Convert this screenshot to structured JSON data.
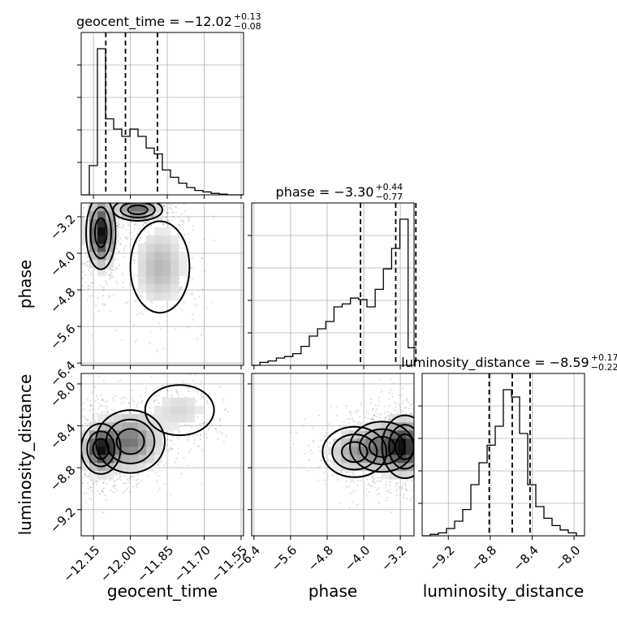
{
  "chart_data": {
    "type": "corner",
    "parameters": [
      "geocent_time",
      "phase",
      "luminosity_distance"
    ],
    "axis_labels": {
      "x": [
        "geocent_time",
        "phase",
        "luminosity_distance"
      ],
      "y": [
        "phase",
        "luminosity_distance"
      ]
    },
    "ranges": {
      "geocent_time": [
        -12.2,
        -11.54
      ],
      "phase": [
        -6.45,
        -2.9
      ],
      "luminosity_distance": [
        -9.45,
        -7.9
      ]
    },
    "ticks": {
      "geocent_time": [
        "−12.15",
        "−12.00",
        "−11.85",
        "−11.70",
        "−11.55"
      ],
      "phase": [
        "−6.4",
        "−5.6",
        "−4.8",
        "−4.0",
        "−3.2"
      ],
      "luminosity_distance": [
        "−9.2",
        "−8.8",
        "−8.4",
        "−8.0"
      ]
    },
    "tick_values": {
      "geocent_time": [
        -12.15,
        -12.0,
        -11.85,
        -11.7,
        -11.55
      ],
      "phase": [
        -6.4,
        -5.6,
        -4.8,
        -4.0,
        -3.2
      ],
      "luminosity_distance": [
        -9.2,
        -8.8,
        -8.4,
        -8.0
      ]
    },
    "titles": [
      {
        "param": "geocent_time",
        "text": "geocent_time = −12.02",
        "sup": "+0.13",
        "sub": "−0.08"
      },
      {
        "param": "phase",
        "text": "phase = −3.30",
        "sup": "+0.44",
        "sub": "−0.77"
      },
      {
        "param": "luminosity_distance",
        "text": "luminosity_distance = −8.59",
        "sup": "+0.17",
        "sub": "−0.22"
      }
    ],
    "quantiles": {
      "geocent_time": [
        -12.1,
        -12.02,
        -11.89
      ],
      "phase": [
        -4.07,
        -3.3,
        -2.86
      ],
      "luminosity_distance": [
        -8.81,
        -8.59,
        -8.42
      ]
    },
    "histograms": {
      "geocent_time": {
        "edges_start": -12.2,
        "bin_width": 0.033,
        "counts": [
          0,
          0.2,
          1.0,
          0.52,
          0.45,
          0.4,
          0.45,
          0.4,
          0.32,
          0.28,
          0.17,
          0.12,
          0.08,
          0.05,
          0.03,
          0.02,
          0.01,
          0.005,
          0,
          0
        ]
      },
      "phase": {
        "edges_start": -6.45,
        "bin_width": 0.18,
        "counts": [
          0,
          0.02,
          0.03,
          0.05,
          0.06,
          0.08,
          0.13,
          0.2,
          0.25,
          0.3,
          0.4,
          0.42,
          0.46,
          0.45,
          0.4,
          0.52,
          0.66,
          0.8,
          1.0,
          0.12
        ]
      },
      "luminosity_distance": {
        "edges_start": -9.45,
        "bin_width": 0.0775,
        "counts": [
          0,
          0.01,
          0.02,
          0.05,
          0.1,
          0.18,
          0.35,
          0.5,
          0.62,
          0.75,
          1.0,
          0.95,
          0.7,
          0.35,
          0.2,
          0.12,
          0.07,
          0.04,
          0.02,
          0
        ]
      }
    },
    "densities": [
      {
        "x": "geocent_time",
        "y": "phase",
        "modes": [
          {
            "x": -12.12,
            "y": -3.55,
            "sx": 0.03,
            "sy": 0.4,
            "w": 0.5
          },
          {
            "x": -11.97,
            "y": -3.05,
            "sx": 0.05,
            "sy": 0.12,
            "w": 0.35
          },
          {
            "x": -11.88,
            "y": -4.3,
            "sx": 0.06,
            "sy": 0.5,
            "w": 0.15
          }
        ]
      },
      {
        "x": "geocent_time",
        "y": "luminosity_distance",
        "modes": [
          {
            "x": -12.12,
            "y": -8.62,
            "sx": 0.04,
            "sy": 0.12,
            "w": 0.55
          },
          {
            "x": -12.0,
            "y": -8.55,
            "sx": 0.07,
            "sy": 0.15,
            "w": 0.35
          },
          {
            "x": -11.8,
            "y": -8.25,
            "sx": 0.07,
            "sy": 0.12,
            "w": 0.1
          }
        ]
      },
      {
        "x": "phase",
        "y": "luminosity_distance",
        "modes": [
          {
            "x": -3.1,
            "y": -8.6,
            "sx": 0.25,
            "sy": 0.15,
            "w": 0.5
          },
          {
            "x": -3.6,
            "y": -8.6,
            "sx": 0.35,
            "sy": 0.12,
            "w": 0.3
          },
          {
            "x": -4.2,
            "y": -8.65,
            "sx": 0.35,
            "sy": 0.12,
            "w": 0.2
          }
        ]
      }
    ]
  }
}
